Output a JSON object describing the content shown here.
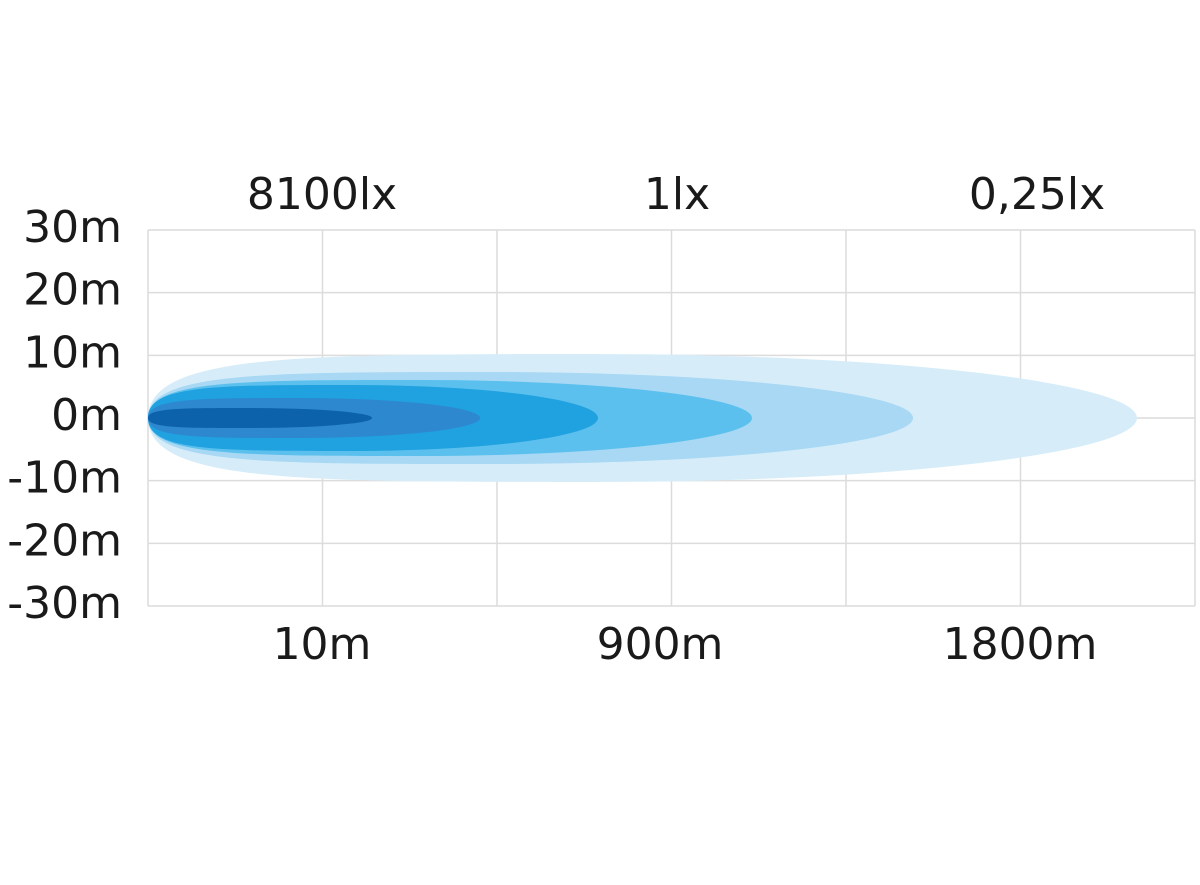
{
  "illuminance_labels": [
    "8100lx",
    "1lx",
    "0,25lx"
  ],
  "y_axis_labels": [
    "30m",
    "20m",
    "10m",
    "0m",
    "-10m",
    "-20m",
    "-30m"
  ],
  "x_axis_labels": [
    "10m",
    "900m",
    "1800m"
  ]
}
